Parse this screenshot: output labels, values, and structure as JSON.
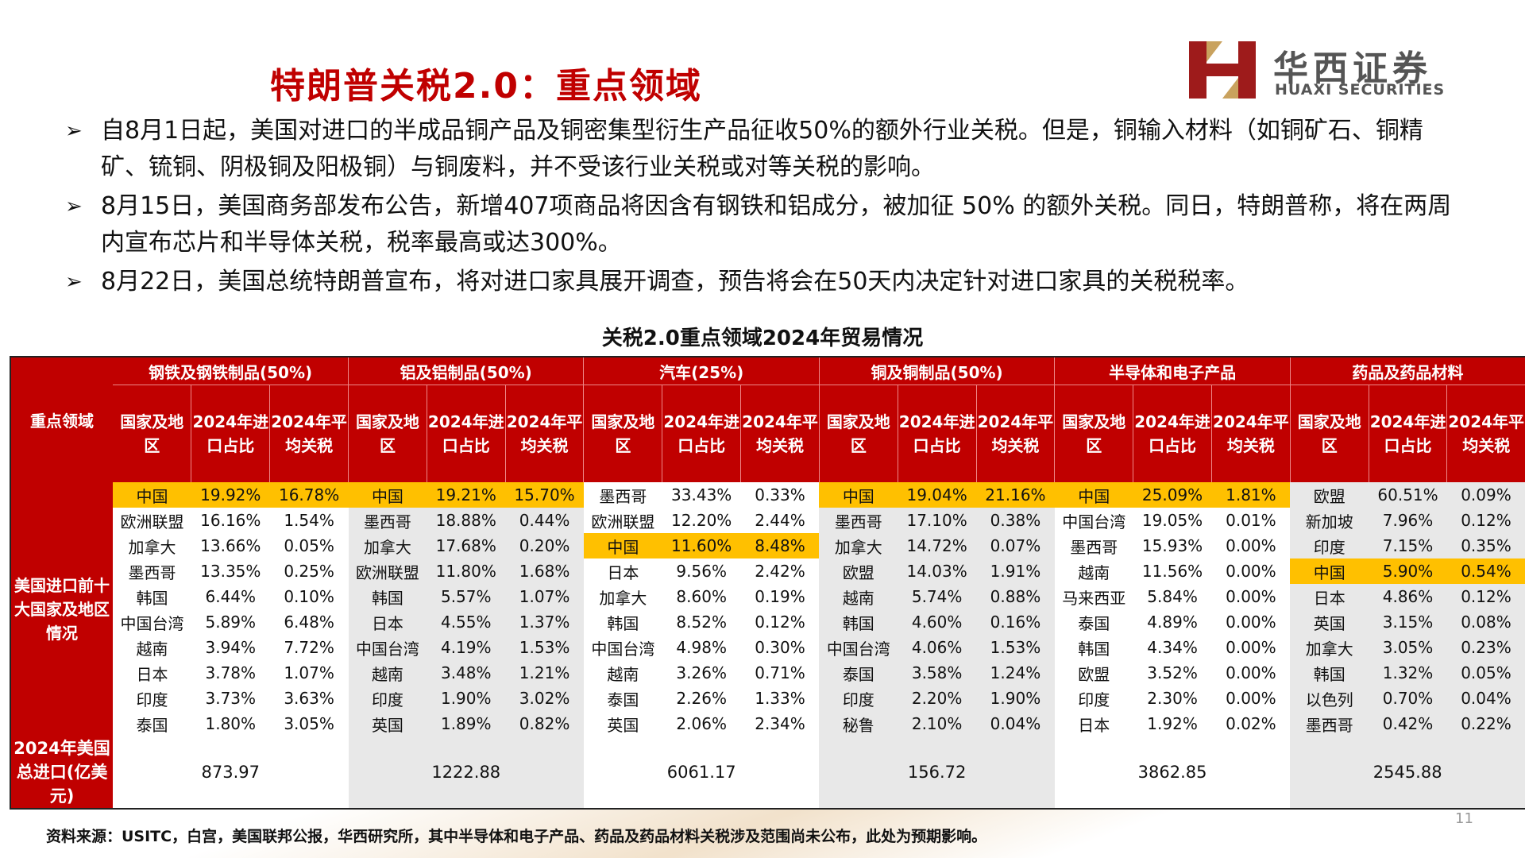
{
  "title": "特朗普关税2.0：重点领域",
  "logo": {
    "cn": "华西证券",
    "en": "HUAXI SECURITIES"
  },
  "bullets": [
    "自8月1日起，美国对进口的半成品铜产品及铜密集型衍生产品征收50%的额外行业关税。但是，铜输入材料（如铜矿石、铜精矿、锍铜、阴极铜及阳极铜）与铜废料，并不受该行业关税或对等关税的影响。",
    "8月15日，美国商务部发布公告，新增407项商品将因含有钢铁和铝成分，被加征 50% 的额外关税。同日，特朗普称，将在两周内宣布芯片和半导体关税，税率最高或达300%。",
    "8月22日，美国总统特朗普宣布，将对进口家具展开调查，预告将会在50天内决定针对进口家具的关税税率。"
  ],
  "table": {
    "title": "关税2.0重点领域2024年贸易情况",
    "corner": "重点领域",
    "row_header": "美国进口前十大国家及地区情况",
    "total_label": "2024年美国总进口(亿美元)",
    "sub_headers": [
      "国家及地区",
      "2024年进口占比",
      "2024年平均关税"
    ],
    "groups": [
      {
        "name": "钢铁及钢铁制品(50%)",
        "total": "873.97",
        "rows": [
          [
            "中国",
            "19.92%",
            "16.78%"
          ],
          [
            "欧洲联盟",
            "16.16%",
            "1.54%"
          ],
          [
            "加拿大",
            "13.66%",
            "0.05%"
          ],
          [
            "墨西哥",
            "13.35%",
            "0.25%"
          ],
          [
            "韩国",
            "6.44%",
            "0.10%"
          ],
          [
            "中国台湾",
            "5.89%",
            "6.48%"
          ],
          [
            "越南",
            "3.94%",
            "7.72%"
          ],
          [
            "日本",
            "3.78%",
            "1.07%"
          ],
          [
            "印度",
            "3.73%",
            "3.63%"
          ],
          [
            "泰国",
            "1.80%",
            "3.05%"
          ]
        ]
      },
      {
        "name": "铝及铝制品(50%)",
        "total": "1222.88",
        "rows": [
          [
            "中国",
            "19.21%",
            "15.70%"
          ],
          [
            "墨西哥",
            "18.88%",
            "0.44%"
          ],
          [
            "加拿大",
            "17.68%",
            "0.20%"
          ],
          [
            "欧洲联盟",
            "11.80%",
            "1.68%"
          ],
          [
            "韩国",
            "5.57%",
            "1.07%"
          ],
          [
            "日本",
            "4.55%",
            "1.37%"
          ],
          [
            "中国台湾",
            "4.19%",
            "1.53%"
          ],
          [
            "越南",
            "3.48%",
            "1.21%"
          ],
          [
            "印度",
            "1.90%",
            "3.02%"
          ],
          [
            "英国",
            "1.89%",
            "0.82%"
          ]
        ]
      },
      {
        "name": "汽车(25%)",
        "total": "6061.17",
        "rows": [
          [
            "墨西哥",
            "33.43%",
            "0.33%"
          ],
          [
            "欧洲联盟",
            "12.20%",
            "2.44%"
          ],
          [
            "中国",
            "11.60%",
            "8.48%"
          ],
          [
            "日本",
            "9.56%",
            "2.42%"
          ],
          [
            "加拿大",
            "8.60%",
            "0.19%"
          ],
          [
            "韩国",
            "8.52%",
            "0.12%"
          ],
          [
            "中国台湾",
            "4.98%",
            "0.30%"
          ],
          [
            "越南",
            "3.26%",
            "0.71%"
          ],
          [
            "泰国",
            "2.26%",
            "1.33%"
          ],
          [
            "英国",
            "2.06%",
            "2.34%"
          ]
        ]
      },
      {
        "name": "铜及铜制品(50%)",
        "total": "156.72",
        "rows": [
          [
            "中国",
            "19.04%",
            "21.16%"
          ],
          [
            "墨西哥",
            "17.10%",
            "0.38%"
          ],
          [
            "加拿大",
            "14.72%",
            "0.07%"
          ],
          [
            "欧盟",
            "14.03%",
            "1.91%"
          ],
          [
            "越南",
            "5.74%",
            "0.88%"
          ],
          [
            "韩国",
            "4.60%",
            "0.16%"
          ],
          [
            "中国台湾",
            "4.06%",
            "1.53%"
          ],
          [
            "泰国",
            "3.58%",
            "1.24%"
          ],
          [
            "印度",
            "2.20%",
            "1.90%"
          ],
          [
            "秘鲁",
            "2.10%",
            "0.04%"
          ]
        ]
      },
      {
        "name": "半导体和电子产品",
        "total": "3862.85",
        "rows": [
          [
            "中国",
            "25.09%",
            "1.81%"
          ],
          [
            "中国台湾",
            "19.05%",
            "0.01%"
          ],
          [
            "墨西哥",
            "15.93%",
            "0.00%"
          ],
          [
            "越南",
            "11.56%",
            "0.00%"
          ],
          [
            "马来西亚",
            "5.84%",
            "0.00%"
          ],
          [
            "泰国",
            "4.89%",
            "0.00%"
          ],
          [
            "韩国",
            "4.34%",
            "0.00%"
          ],
          [
            "欧盟",
            "3.52%",
            "0.00%"
          ],
          [
            "印度",
            "2.30%",
            "0.00%"
          ],
          [
            "日本",
            "1.92%",
            "0.02%"
          ]
        ]
      },
      {
        "name": "药品及药品材料",
        "total": "2545.88",
        "rows": [
          [
            "欧盟",
            "60.51%",
            "0.09%"
          ],
          [
            "新加坡",
            "7.96%",
            "0.12%"
          ],
          [
            "印度",
            "7.15%",
            "0.35%"
          ],
          [
            "中国",
            "5.90%",
            "0.54%"
          ],
          [
            "日本",
            "4.86%",
            "0.12%"
          ],
          [
            "英国",
            "3.15%",
            "0.08%"
          ],
          [
            "加拿大",
            "3.05%",
            "0.23%"
          ],
          [
            "韩国",
            "1.32%",
            "0.05%"
          ],
          [
            "以色列",
            "0.70%",
            "0.04%"
          ],
          [
            "墨西哥",
            "0.42%",
            "0.22%"
          ]
        ]
      }
    ],
    "highlight_rows": [
      0,
      0,
      2,
      0,
      0,
      3
    ],
    "column_shading": [
      "white",
      "gray",
      "white",
      "gray",
      "white",
      "gray"
    ]
  },
  "footer": "资料来源：USITC，白宫，美国联邦公报，华西研究所，其中半导体和电子产品、药品及药品材料关税涉及范围尚未公布，此处为预期影响。",
  "page_number": "11"
}
